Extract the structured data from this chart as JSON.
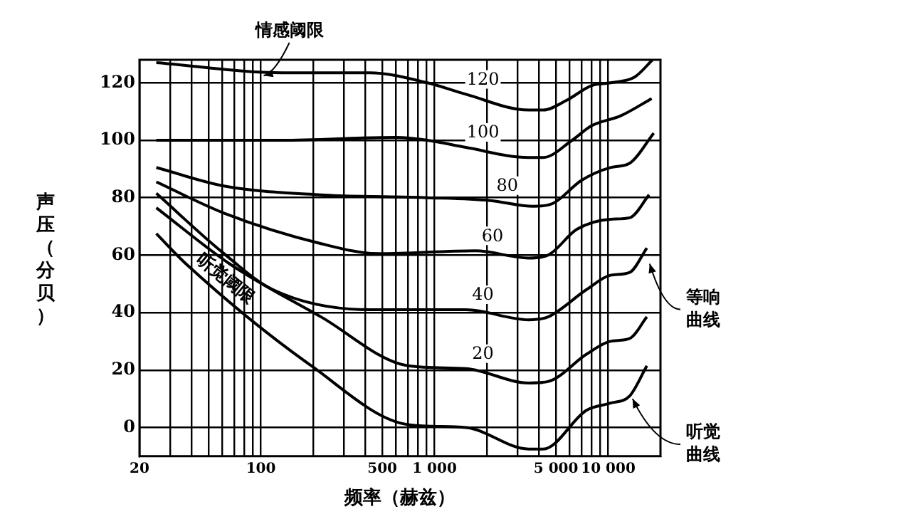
{
  "chart_data": {
    "type": "line",
    "xlabel": "频率（赫兹）",
    "ylabel": "声压（分贝）",
    "log": "x",
    "grid": true,
    "legend": false,
    "marker": "none",
    "line_style": "solid",
    "xlim": [
      20,
      20000
    ],
    "ylim": [
      -10,
      128
    ],
    "xticks": [
      20,
      {
        "value": 30,
        "label": null
      },
      {
        "value": 40,
        "label": null
      },
      {
        "value": 50,
        "label": null
      },
      {
        "value": 60,
        "label": null
      },
      {
        "value": 70,
        "label": null
      },
      {
        "value": 80,
        "label": null
      },
      {
        "value": 90,
        "label": null
      },
      100,
      {
        "value": 200,
        "label": null
      },
      {
        "value": 300,
        "label": null
      },
      {
        "value": 400,
        "label": null
      },
      500,
      {
        "value": 600,
        "label": null
      },
      {
        "value": 700,
        "label": null
      },
      {
        "value": 800,
        "label": null
      },
      {
        "value": 900,
        "label": null
      },
      {
        "value": 1000,
        "label": "1 000"
      },
      {
        "value": 2000,
        "label": null
      },
      {
        "value": 3000,
        "label": null
      },
      {
        "value": 4000,
        "label": null
      },
      {
        "value": 5000,
        "label": "5 000"
      },
      {
        "value": 6000,
        "label": null
      },
      {
        "value": 7000,
        "label": null
      },
      {
        "value": 8000,
        "label": null
      },
      {
        "value": 9000,
        "label": null
      },
      {
        "value": 10000,
        "label": "10 000"
      }
    ],
    "yticks": [
      0,
      20,
      40,
      60,
      80,
      100,
      120
    ],
    "series": [
      {
        "name": "120",
        "color": "#000000",
        "x": [
          25,
          133,
          422,
          910,
          1515,
          3480,
          4220,
          5800,
          8000,
          10300,
          14200,
          18000
        ],
        "values": [
          127,
          123.5,
          123.5,
          120,
          116,
          110.5,
          110.5,
          114,
          119,
          120,
          122,
          128
        ]
      },
      {
        "name": "100",
        "color": "#000000",
        "x": [
          25,
          130,
          600,
          910,
          1515,
          3480,
          4220,
          6200,
          8000,
          11800,
          17800
        ],
        "values": [
          100,
          100,
          101,
          100,
          97.5,
          94,
          94,
          100,
          105,
          108.5,
          114.5
        ]
      },
      {
        "name": "80",
        "color": "#000000",
        "x": [
          25,
          62,
          222,
          910,
          2090,
          3710,
          4800,
          7000,
          10300,
          13300,
          18300
        ],
        "values": [
          90.5,
          84,
          81,
          80,
          79,
          77,
          78,
          86,
          90.5,
          92,
          102.5
        ]
      },
      {
        "name": "60",
        "color": "#000000",
        "x": [
          25,
          62,
          222,
          480,
          1720,
          3480,
          4500,
          6600,
          10300,
          13300,
          17200
        ],
        "values": [
          85.5,
          74.5,
          64,
          60.5,
          61.5,
          59,
          60,
          69,
          72.5,
          73,
          81
        ]
      },
      {
        "name": "40",
        "color": "#000000",
        "x": [
          25,
          60,
          117,
          422,
          1515,
          3480,
          4500,
          7500,
          10300,
          13300,
          16700
        ],
        "values": [
          81.5,
          61,
          48,
          41,
          41,
          37.5,
          38.5,
          48,
          53,
          54,
          62.5
        ]
      },
      {
        "name": "20",
        "color": "#000000",
        "x": [
          25,
          66,
          222,
          705,
          1515,
          3480,
          4500,
          7500,
          10300,
          13300,
          16700
        ],
        "values": [
          76.5,
          57,
          38.5,
          21.5,
          20.5,
          15.5,
          16,
          25.5,
          30,
          31,
          38.5
        ]
      },
      {
        "name": "听觉阈限",
        "color": "#000000",
        "x": [
          25,
          37,
          195,
          705,
          1515,
          3480,
          4220,
          7500,
          10300,
          13300,
          16700
        ],
        "values": [
          67.5,
          57,
          21.5,
          1,
          0,
          -7.5,
          -7.5,
          6,
          8.5,
          11,
          21.5
        ]
      }
    ],
    "annotations": [
      {
        "text": "情感阈限",
        "x": 100,
        "y": 123.5
      },
      {
        "text": "等响曲线",
        "x": 16700,
        "y": 58
      },
      {
        "text": "听觉曲线",
        "x": 13300,
        "y": 11
      }
    ]
  }
}
